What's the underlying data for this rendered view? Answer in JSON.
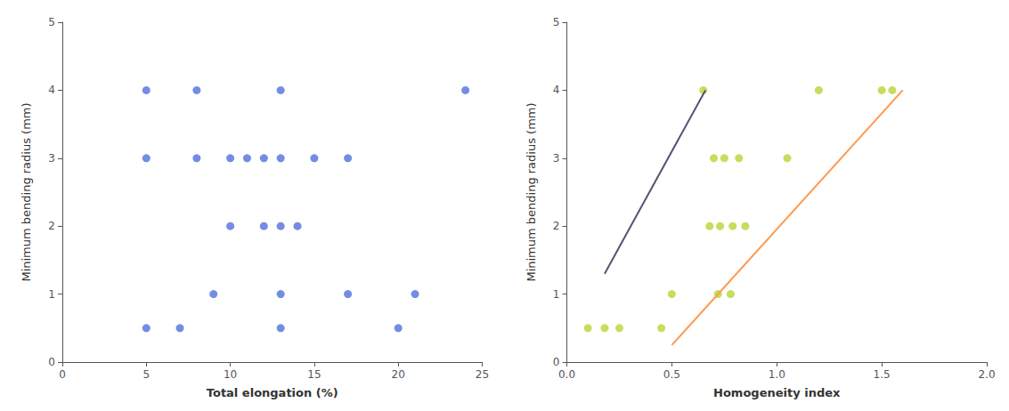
{
  "chart_data": [
    {
      "type": "scatter",
      "xlabel": "Total elongation (%)",
      "ylabel": "Minimum bending radius (mm)",
      "xlim": [
        0,
        25
      ],
      "ylim": [
        0,
        5
      ],
      "xticks": [
        0,
        5,
        10,
        15,
        20,
        25
      ],
      "yticks": [
        0,
        1,
        2,
        3,
        4,
        5
      ],
      "grid": false,
      "series": [
        {
          "type": "scatter",
          "x": [
            5,
            8,
            13,
            24,
            5,
            8,
            10,
            11,
            12,
            13,
            15,
            17,
            10,
            12,
            13,
            14,
            9,
            13,
            17,
            21,
            5,
            7,
            13,
            20
          ],
          "values": [
            4,
            4,
            4,
            4,
            3,
            3,
            3,
            3,
            3,
            3,
            3,
            3,
            2,
            2,
            2,
            2,
            1,
            1,
            1,
            1,
            0.5,
            0.5,
            0.5,
            0.5
          ]
        }
      ]
    },
    {
      "type": "scatter",
      "xlabel": "Homogeneity index",
      "ylabel": "Minimum bending radius (mm)",
      "xlim": [
        0,
        2
      ],
      "ylim": [
        0,
        5
      ],
      "xticks": [
        {
          "value": 0,
          "label": "0.0"
        },
        0.5,
        {
          "value": 1,
          "label": "1.0"
        },
        1.5,
        {
          "value": 2,
          "label": "2.0"
        }
      ],
      "yticks": [
        0,
        1,
        2,
        3,
        4,
        5
      ],
      "grid": false,
      "series": [
        {
          "type": "scatter",
          "x": [
            0.65,
            1.2,
            1.5,
            1.55,
            0.7,
            0.75,
            0.82,
            1.05,
            0.68,
            0.73,
            0.79,
            0.85,
            0.5,
            0.72,
            0.78,
            0.1,
            0.18,
            0.25,
            0.45
          ],
          "values": [
            4,
            4,
            4,
            4,
            3,
            3,
            3,
            3,
            2,
            2,
            2,
            2,
            1,
            1,
            1,
            0.5,
            0.5,
            0.5,
            0.5
          ]
        },
        {
          "type": "line",
          "x": [
            0.18,
            0.66
          ],
          "values": [
            1.3,
            4.0
          ]
        },
        {
          "type": "line",
          "x": [
            0.5,
            1.6
          ],
          "values": [
            0.25,
            4.0
          ]
        }
      ]
    }
  ]
}
